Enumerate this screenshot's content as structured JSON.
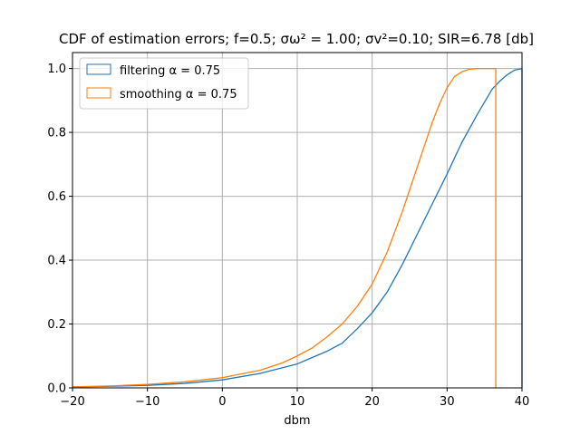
{
  "chart_data": {
    "type": "line",
    "title": "CDF of estimation errors; f=0.5; σω² = 1.00; σv²=0.10; SIR=6.78 [db]",
    "xlabel": "dbm",
    "ylabel": "",
    "xlim": [
      -20,
      40
    ],
    "ylim": [
      0,
      1.05
    ],
    "x_ticks": [
      -20,
      -10,
      0,
      10,
      20,
      30,
      40
    ],
    "y_ticks": [
      0.0,
      0.2,
      0.4,
      0.6,
      0.8,
      1.0
    ],
    "x_tick_labels": [
      "−20",
      "−10",
      "0",
      "10",
      "20",
      "30",
      "40"
    ],
    "y_tick_labels": [
      "0.0",
      "0.2",
      "0.4",
      "0.6",
      "0.8",
      "1.0"
    ],
    "grid": true,
    "legend_position": "top-left",
    "series": [
      {
        "name": "filtering α = 0.75",
        "color": "#1f77b4",
        "x": [
          -20,
          -15,
          -10,
          -5,
          0,
          5,
          10,
          12,
          14,
          16,
          18,
          20,
          22,
          24,
          26,
          28,
          30,
          32,
          34,
          36,
          37,
          38,
          39,
          40,
          40
        ],
        "y": [
          0.003,
          0.005,
          0.008,
          0.014,
          0.025,
          0.045,
          0.075,
          0.095,
          0.115,
          0.14,
          0.185,
          0.235,
          0.3,
          0.385,
          0.48,
          0.575,
          0.67,
          0.77,
          0.855,
          0.935,
          0.96,
          0.98,
          0.995,
          1.0,
          0.0
        ]
      },
      {
        "name": "smoothing α = 0.75",
        "color": "#ff7f0e",
        "x": [
          -20,
          -15,
          -10,
          -5,
          0,
          5,
          8,
          10,
          12,
          14,
          16,
          18,
          20,
          22,
          24,
          26,
          27,
          28,
          29,
          30,
          31,
          32,
          33,
          34,
          35,
          36.5,
          36.5
        ],
        "y": [
          0.003,
          0.006,
          0.011,
          0.019,
          0.032,
          0.055,
          0.078,
          0.1,
          0.125,
          0.16,
          0.2,
          0.255,
          0.325,
          0.425,
          0.55,
          0.69,
          0.76,
          0.83,
          0.89,
          0.94,
          0.975,
          0.99,
          0.998,
          1.0,
          1.0,
          1.0,
          0.0
        ]
      }
    ]
  }
}
